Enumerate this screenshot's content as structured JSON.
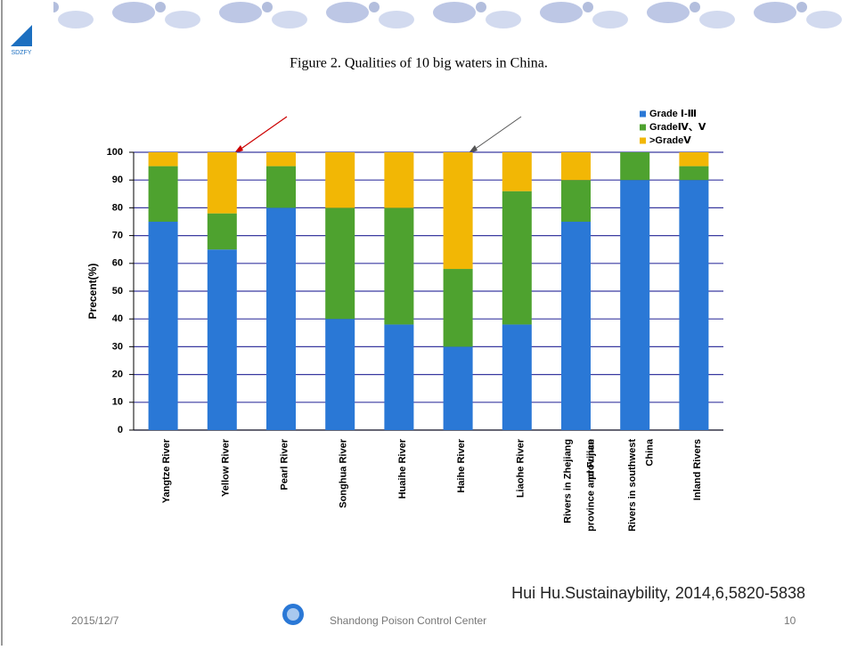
{
  "logo": "SDZFY",
  "chart_data": {
    "type": "stacked-bar",
    "title": "Figure 2. Qualities of 10 big waters in China.",
    "y_label": "Precent(%)",
    "categories": [
      "Yangtze River",
      "Yellow  River",
      "Pearl River",
      "Songhua River",
      "Huaihe River",
      "Haihe River",
      "Liaohe River",
      "Rivers in Zhejiang province and Fujian province",
      "Rivers in southwest China",
      "Inland Rivers"
    ],
    "series": [
      {
        "name": "Grade Ⅰ-Ⅲ",
        "color": "#2a78d6",
        "values": [
          75,
          65,
          80,
          40,
          38,
          30,
          38,
          75,
          90,
          90
        ]
      },
      {
        "name": "GradeⅣ、Ⅴ",
        "color": "#4ea22f",
        "values": [
          20,
          13,
          15,
          40,
          42,
          28,
          48,
          15,
          10,
          5
        ]
      },
      {
        "name": ">GradeⅤ",
        "color": "#f2b705",
        "values": [
          5,
          22,
          5,
          20,
          20,
          42,
          14,
          10,
          0,
          5
        ]
      }
    ],
    "ylim": [
      0,
      100
    ],
    "yticks": [
      0,
      10,
      20,
      30,
      40,
      50,
      60,
      70,
      80,
      90,
      100
    ],
    "grid": true,
    "legend": "top-right"
  },
  "citation": "Hui Hu.Sustainaybility, 2014,6,5820-5838",
  "footer": {
    "date": "2015/12/7",
    "organization": "Shandong Poison Control Center",
    "page": "10"
  }
}
